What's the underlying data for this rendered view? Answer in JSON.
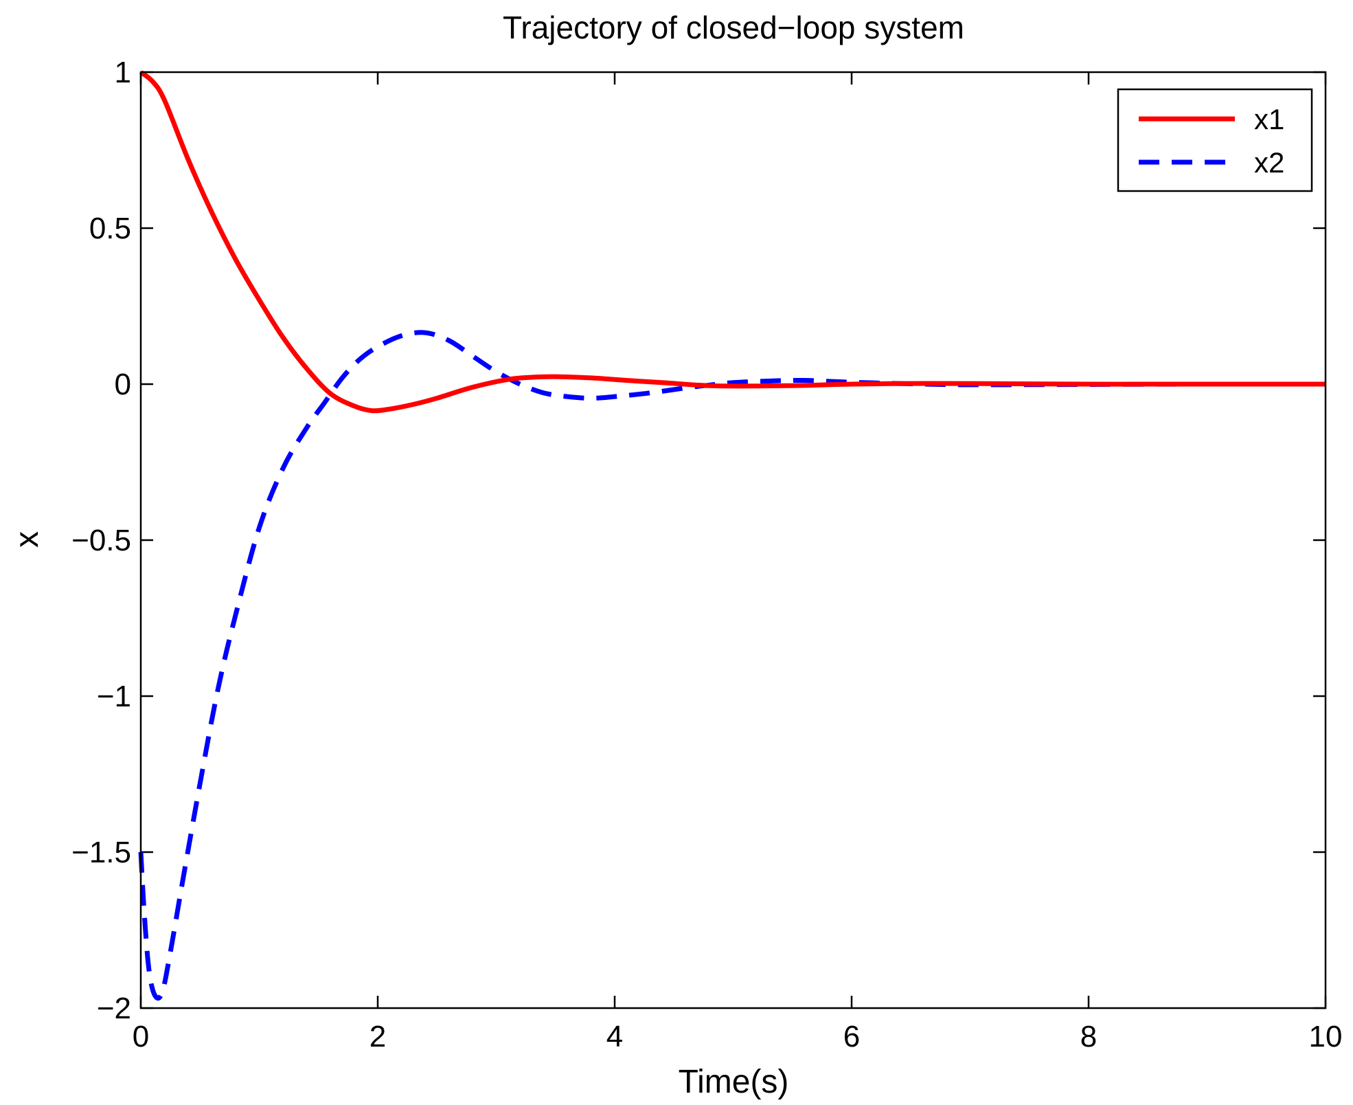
{
  "chart_data": {
    "type": "line",
    "title": "Trajectory of closed−loop system",
    "xlabel": "Time(s)",
    "ylabel": "x",
    "xlim": [
      0,
      10
    ],
    "ylim": [
      -2,
      1
    ],
    "grid": false,
    "legend_position": "top-right",
    "x_ticks": [
      0,
      2,
      4,
      6,
      8,
      10
    ],
    "x_tick_labels": [
      "0",
      "2",
      "4",
      "6",
      "8",
      "10"
    ],
    "y_ticks": [
      1,
      0.5,
      0,
      -0.5,
      -1,
      -1.5,
      -2
    ],
    "y_tick_labels": [
      "1",
      "0.5",
      "0",
      "−0.5",
      "−1",
      "−1.5",
      "−2"
    ],
    "series": [
      {
        "name": "x1",
        "color": "#ff0000",
        "line_style": "solid",
        "x": [
          0,
          0.1,
          0.2,
          0.4,
          0.6,
          0.8,
          1.0,
          1.2,
          1.4,
          1.6,
          1.8,
          1.95,
          2.1,
          2.3,
          2.5,
          2.8,
          3.1,
          3.3,
          3.5,
          3.8,
          4.1,
          4.4,
          4.8,
          5.2,
          5.6,
          6.0,
          6.5,
          7.0,
          8.0,
          9.0,
          10.0
        ],
        "y": [
          1.0,
          0.97,
          0.91,
          0.72,
          0.55,
          0.4,
          0.27,
          0.15,
          0.05,
          -0.03,
          -0.07,
          -0.085,
          -0.08,
          -0.065,
          -0.045,
          -0.01,
          0.015,
          0.022,
          0.024,
          0.02,
          0.012,
          0.005,
          -0.005,
          -0.006,
          -0.004,
          0.0,
          0.002,
          0.002,
          0.0,
          0.0,
          0.0
        ]
      },
      {
        "name": "x2",
        "color": "#0000ff",
        "line_style": "dashed",
        "x": [
          0,
          0.03,
          0.07,
          0.12,
          0.18,
          0.25,
          0.35,
          0.5,
          0.65,
          0.8,
          1.0,
          1.2,
          1.4,
          1.55,
          1.7,
          1.85,
          2.0,
          2.2,
          2.4,
          2.6,
          2.8,
          3.0,
          3.2,
          3.4,
          3.6,
          3.8,
          4.0,
          4.3,
          4.6,
          4.8,
          5.0,
          5.3,
          5.6,
          6.0,
          6.5,
          7.0,
          8.0,
          9.0,
          10.0
        ],
        "y": [
          -1.5,
          -1.7,
          -1.88,
          -1.96,
          -1.95,
          -1.82,
          -1.6,
          -1.28,
          -0.98,
          -0.74,
          -0.46,
          -0.27,
          -0.14,
          -0.06,
          0.02,
          0.08,
          0.12,
          0.155,
          0.165,
          0.14,
          0.09,
          0.04,
          0.0,
          -0.028,
          -0.04,
          -0.045,
          -0.04,
          -0.028,
          -0.012,
          -0.003,
          0.005,
          0.01,
          0.012,
          0.006,
          0.001,
          -0.002,
          -0.001,
          0.0,
          0.0
        ]
      }
    ]
  }
}
